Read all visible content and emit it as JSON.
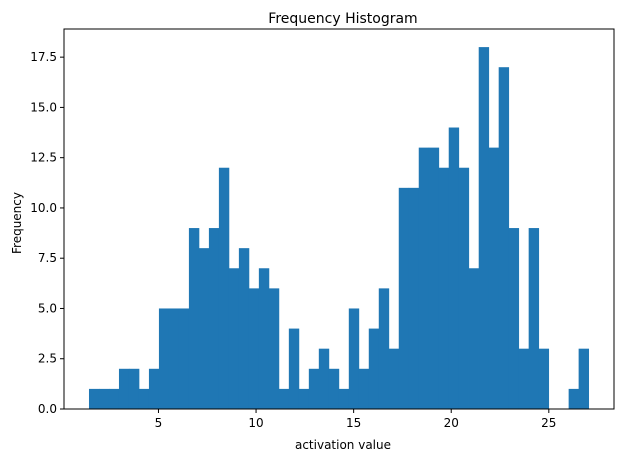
{
  "chart_data": {
    "type": "bar",
    "title": "Frequency Histogram",
    "xlabel": "activation value",
    "ylabel": "Frequency",
    "xlim": [
      0.16,
      28.34
    ],
    "ylim": [
      0,
      18.9
    ],
    "xticks": [
      5,
      10,
      15,
      20,
      25
    ],
    "xtick_labels": [
      "5",
      "10",
      "15",
      "20",
      "25"
    ],
    "yticks": [
      0.0,
      2.5,
      5.0,
      7.5,
      10.0,
      12.5,
      15.0,
      17.5
    ],
    "ytick_labels": [
      "0.0",
      "2.5",
      "5.0",
      "7.5",
      "10.0",
      "12.5",
      "15.0",
      "17.5"
    ],
    "grid": false,
    "bar_color": "#1f77b4",
    "bin_start": 1.44,
    "bin_width": 0.512,
    "bin_counts": [
      1,
      1,
      1,
      2,
      2,
      1,
      2,
      5,
      5,
      5,
      9,
      8,
      9,
      12,
      7,
      8,
      6,
      7,
      6,
      1,
      4,
      1,
      2,
      3,
      2,
      1,
      5,
      2,
      4,
      6,
      3,
      11,
      11,
      13,
      13,
      12,
      14,
      12,
      7,
      18,
      13,
      17,
      9,
      3,
      9,
      3,
      0,
      0,
      1,
      3
    ]
  }
}
